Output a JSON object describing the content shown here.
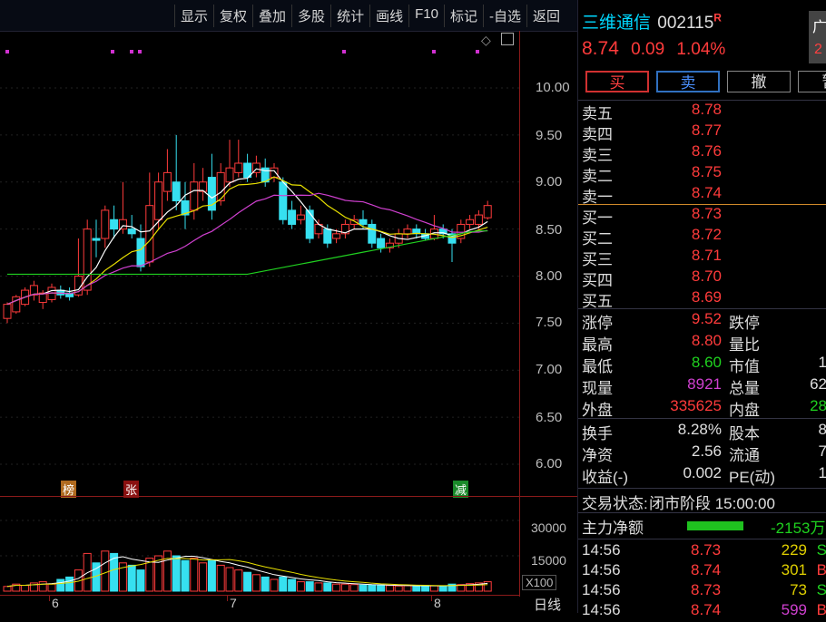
{
  "toolbar": {
    "tabs": [
      "显示",
      "复权",
      "叠加",
      "多股",
      "统计",
      "画线",
      "F10",
      "标记",
      "-自选",
      "返回"
    ]
  },
  "chart": {
    "y_labels": [
      "10.00",
      "9.50",
      "9.00",
      "8.50",
      "8.00",
      "7.50",
      "7.00",
      "6.50",
      "6.00"
    ],
    "tags": [
      {
        "text": "榜",
        "color": "#b06a1e"
      },
      {
        "text": "张",
        "color": "#8a1010"
      },
      {
        "text": "减",
        "color": "#1a8a2a"
      }
    ],
    "volume_labels": [
      "30000",
      "15000"
    ],
    "volume_unit": "X100",
    "date_labels": [
      "6",
      "7",
      "8"
    ],
    "period": "日线"
  },
  "stock": {
    "name": "三维通信",
    "code": "002115",
    "badge": "R",
    "price": "8.74",
    "change": "0.09",
    "change_pct": "1.04%",
    "ad_label": "广",
    "ad_num": "2"
  },
  "trade_buttons": [
    "买",
    "卖",
    "撤",
    "暂"
  ],
  "sell_levels": [
    {
      "label": "卖五",
      "price": "8.78"
    },
    {
      "label": "卖四",
      "price": "8.77"
    },
    {
      "label": "卖三",
      "price": "8.76"
    },
    {
      "label": "卖二",
      "price": "8.75"
    },
    {
      "label": "卖一",
      "price": "8.74"
    }
  ],
  "buy_levels": [
    {
      "label": "买一",
      "price": "8.73"
    },
    {
      "label": "买二",
      "price": "8.72"
    },
    {
      "label": "买三",
      "price": "8.71"
    },
    {
      "label": "买四",
      "price": "8.70"
    },
    {
      "label": "买五",
      "price": "8.69"
    }
  ],
  "stats": [
    {
      "l1": "涨停",
      "v1": "9.52",
      "c1": "red",
      "l2": "跌停",
      "v2": ""
    },
    {
      "l1": "最高",
      "v1": "8.80",
      "c1": "red",
      "l2": "量比",
      "v2": ""
    },
    {
      "l1": "最低",
      "v1": "8.60",
      "c1": "green",
      "l2": "市值",
      "v2": "1"
    },
    {
      "l1": "现量",
      "v1": "8921",
      "c1": "mag",
      "l2": "总量",
      "v2": "62"
    },
    {
      "l1": "外盘",
      "v1": "335625",
      "c1": "red",
      "l2": "内盘",
      "v2": "28"
    }
  ],
  "stats2": [
    {
      "l1": "换手",
      "v1": "8.28%",
      "l2": "股本",
      "v2": "8"
    },
    {
      "l1": "净资",
      "v1": "2.56",
      "l2": "流通",
      "v2": "7"
    },
    {
      "l1": "收益(-)",
      "v1": "0.002",
      "l2": "PE(动)",
      "v2": "1"
    }
  ],
  "status": {
    "label": "交易状态:",
    "value": "闭市阶段 15:00:00"
  },
  "main_flow": {
    "label": "主力净额",
    "value": "-2153万"
  },
  "ticks": [
    {
      "time": "14:56",
      "price": "8.73",
      "pc": "red",
      "vol": "229",
      "vc": "yellow",
      "dir": "S",
      "dc": "green"
    },
    {
      "time": "14:56",
      "price": "8.74",
      "pc": "red",
      "vol": "301",
      "vc": "yellow",
      "dir": "B",
      "dc": "red"
    },
    {
      "time": "14:56",
      "price": "8.73",
      "pc": "red",
      "vol": "73",
      "vc": "yellow",
      "dir": "S",
      "dc": "green"
    },
    {
      "time": "14:56",
      "price": "8.74",
      "pc": "red",
      "vol": "599",
      "vc": "mag",
      "dir": "B",
      "dc": "red"
    }
  ]
}
